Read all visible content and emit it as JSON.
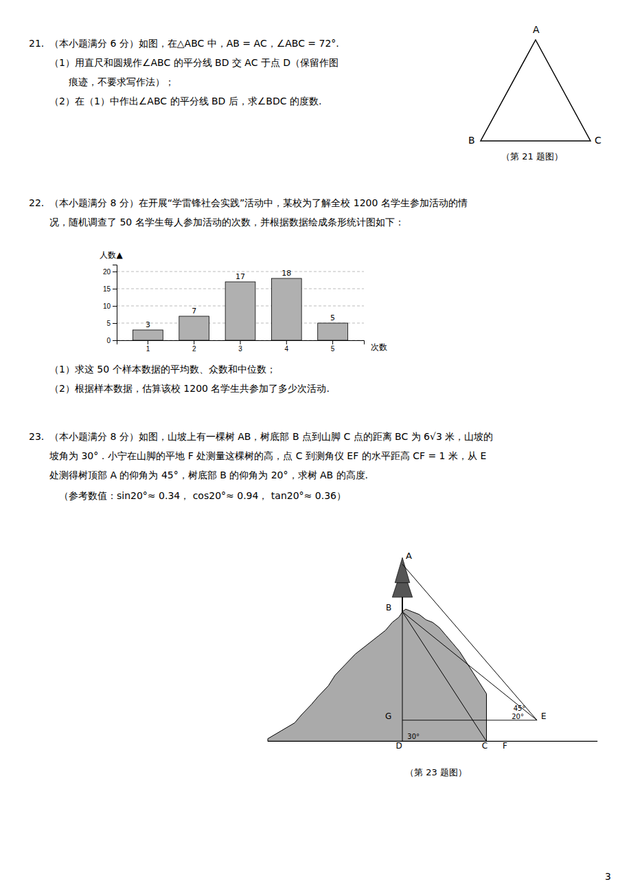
{
  "chart_data": {
    "type": "bar",
    "categories": [
      1,
      2,
      3,
      4,
      5
    ],
    "values": [
      3,
      7,
      17,
      18,
      5
    ],
    "color": "#b0b0b0",
    "ylim": [
      0,
      22
    ],
    "yticks": [
      0,
      5,
      10,
      15,
      20
    ],
    "grid": true,
    "data_labels": true,
    "xlabel": "次数",
    "ylabel": "人数▲",
    "annotations": [
      "21.",
      "（本小题满分 6 分）如图，在△ABC 中，AB = AC，∠ABC = 72°.",
      "（1）用直尺和圆规作∠ABC 的平分线 BD 交 AC 于点 D（保留作图",
      "痕迹，不要求写作法）；",
      "（2）在（1）中作出∠ABC 的平分线 BD 后，求∠BDC 的度数.",
      "A",
      "B",
      "C",
      "（第 21 题图）",
      "22.",
      "（本小题满分 8 分）在开展“学雷锋社会实践”活动中，某校为了解全校 1200 名学生参加活动的情",
      "况，随机调查了 50 名学生每人参加活动的次数，并根据数据绘成条形统计图如下：",
      "（1）求这 50 个样本数据的平均数、众数和中位数；",
      "（2）根据样本数据，估算该校 1200 名学生共参加了多少次活动.",
      "23.",
      "（本小题满分 8 分）如图，山坡上有一棵树 AB，树底部 B 点到山脚 C 点的距离 BC 为 6√3 米，山坡的",
      "坡角为 30°．小宁在山脚的平地 F 处测量这棵树的高，点 C 到测角仪 EF 的水平距高 CF = 1 米，从 E",
      "处测得树顶部 A 的仰角为 45°，树底部 B 的仰角为 20°，求树 AB 的高度.",
      "（参考数值：sin20°≈ 0.34， cos20°≈ 0.94， tan20°≈ 0.36）",
      "（第 23 题图）",
      "A",
      "B",
      "G",
      "D",
      "C",
      "F",
      "E",
      "45°",
      "20°",
      "30°",
      "3"
    ]
  }
}
